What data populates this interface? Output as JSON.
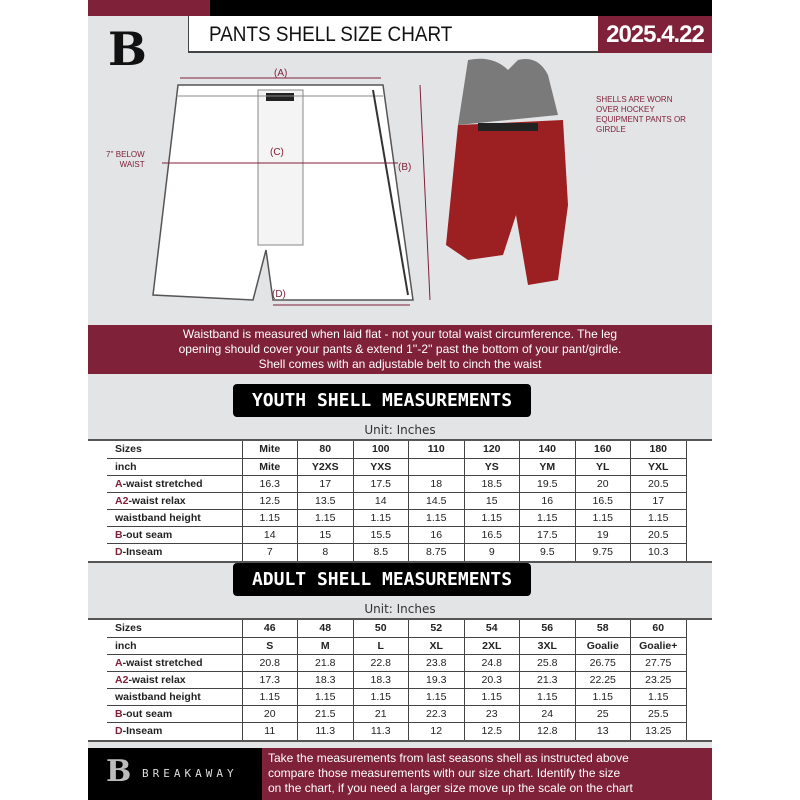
{
  "header": {
    "title": "PANTS SHELL SIZE CHART",
    "date": "2025.4.22",
    "logo": "B"
  },
  "diagram": {
    "label_a": "(A)",
    "label_b": "(B)",
    "label_c": "(C)",
    "label_d": "(D)",
    "below_waist": "7'' BELOW\nWAIST",
    "note": "SHELLS ARE WORN OVER HOCKEY EQUIPMENT PANTS OR GIRDLE"
  },
  "info": [
    "Waistband is measured when laid flat - not your total waist circumference. The leg",
    "opening should cover your pants & extend 1''-2'' past the bottom of your pant/girdle.",
    "Shell comes with an adjustable belt to cinch the waist"
  ],
  "colors": {
    "accent": "#7f2139",
    "dark": "#000000",
    "background": "#e3e4e6"
  },
  "youth": {
    "title": "YOUTH SHELL MEASUREMENTS",
    "unit": "Unit: Inches",
    "rows": [
      {
        "prefix": "",
        "label": "Sizes",
        "values": [
          "Mite",
          "80",
          "100",
          "110",
          "120",
          "140",
          "160",
          "180"
        ]
      },
      {
        "prefix": "",
        "label": "inch",
        "values": [
          "Mite",
          "Y2XS",
          "YXS",
          "",
          "YS",
          "YM",
          "YL",
          "YXL"
        ]
      },
      {
        "prefix": "A",
        "label": "-waist stretched",
        "values": [
          "16.3",
          "17",
          "17.5",
          "18",
          "18.5",
          "19.5",
          "20",
          "20.5"
        ]
      },
      {
        "prefix": "A2",
        "label": "-waist relax",
        "values": [
          "12.5",
          "13.5",
          "14",
          "14.5",
          "15",
          "16",
          "16.5",
          "17"
        ]
      },
      {
        "prefix": "",
        "label": "waistband height",
        "values": [
          "1.15",
          "1.15",
          "1.15",
          "1.15",
          "1.15",
          "1.15",
          "1.15",
          "1.15"
        ]
      },
      {
        "prefix": "B",
        "label": "-out seam",
        "values": [
          "14",
          "15",
          "15.5",
          "16",
          "16.5",
          "17.5",
          "19",
          "20.5"
        ]
      },
      {
        "prefix": "D",
        "label": "-Inseam",
        "values": [
          "7",
          "8",
          "8.5",
          "8.75",
          "9",
          "9.5",
          "9.75",
          "10.3"
        ]
      }
    ]
  },
  "adult": {
    "title": "ADULT SHELL MEASUREMENTS",
    "unit": "Unit: Inches",
    "rows": [
      {
        "prefix": "",
        "label": "Sizes",
        "values": [
          "46",
          "48",
          "50",
          "52",
          "54",
          "56",
          "58",
          "60"
        ]
      },
      {
        "prefix": "",
        "label": "inch",
        "values": [
          "S",
          "M",
          "L",
          "XL",
          "2XL",
          "3XL",
          "Goalie",
          "Goalie+"
        ]
      },
      {
        "prefix": "A",
        "label": "-waist stretched",
        "values": [
          "20.8",
          "21.8",
          "22.8",
          "23.8",
          "24.8",
          "25.8",
          "26.75",
          "27.75"
        ]
      },
      {
        "prefix": "A2",
        "label": "-waist relax",
        "values": [
          "17.3",
          "18.3",
          "18.3",
          "19.3",
          "20.3",
          "21.3",
          "22.25",
          "23.25"
        ]
      },
      {
        "prefix": "",
        "label": "waistband height",
        "values": [
          "1.15",
          "1.15",
          "1.15",
          "1.15",
          "1.15",
          "1.15",
          "1.15",
          "1.15"
        ]
      },
      {
        "prefix": "B",
        "label": "-out seam",
        "values": [
          "20",
          "21.5",
          "21",
          "22.3",
          "23",
          "24",
          "25",
          "25.5"
        ]
      },
      {
        "prefix": "D",
        "label": "-Inseam",
        "values": [
          "11",
          "11.3",
          "11.3",
          "12",
          "12.5",
          "12.8",
          "13",
          "13.25"
        ]
      }
    ]
  },
  "footer": {
    "brand": "BREAKAWAY",
    "logo": "B",
    "text": [
      "Take the measurements from last seasons shell as instructed above",
      "compare those measurements  with our size chart. Identify the size",
      "on the chart, if you need a larger size move up the scale on the chart"
    ]
  }
}
